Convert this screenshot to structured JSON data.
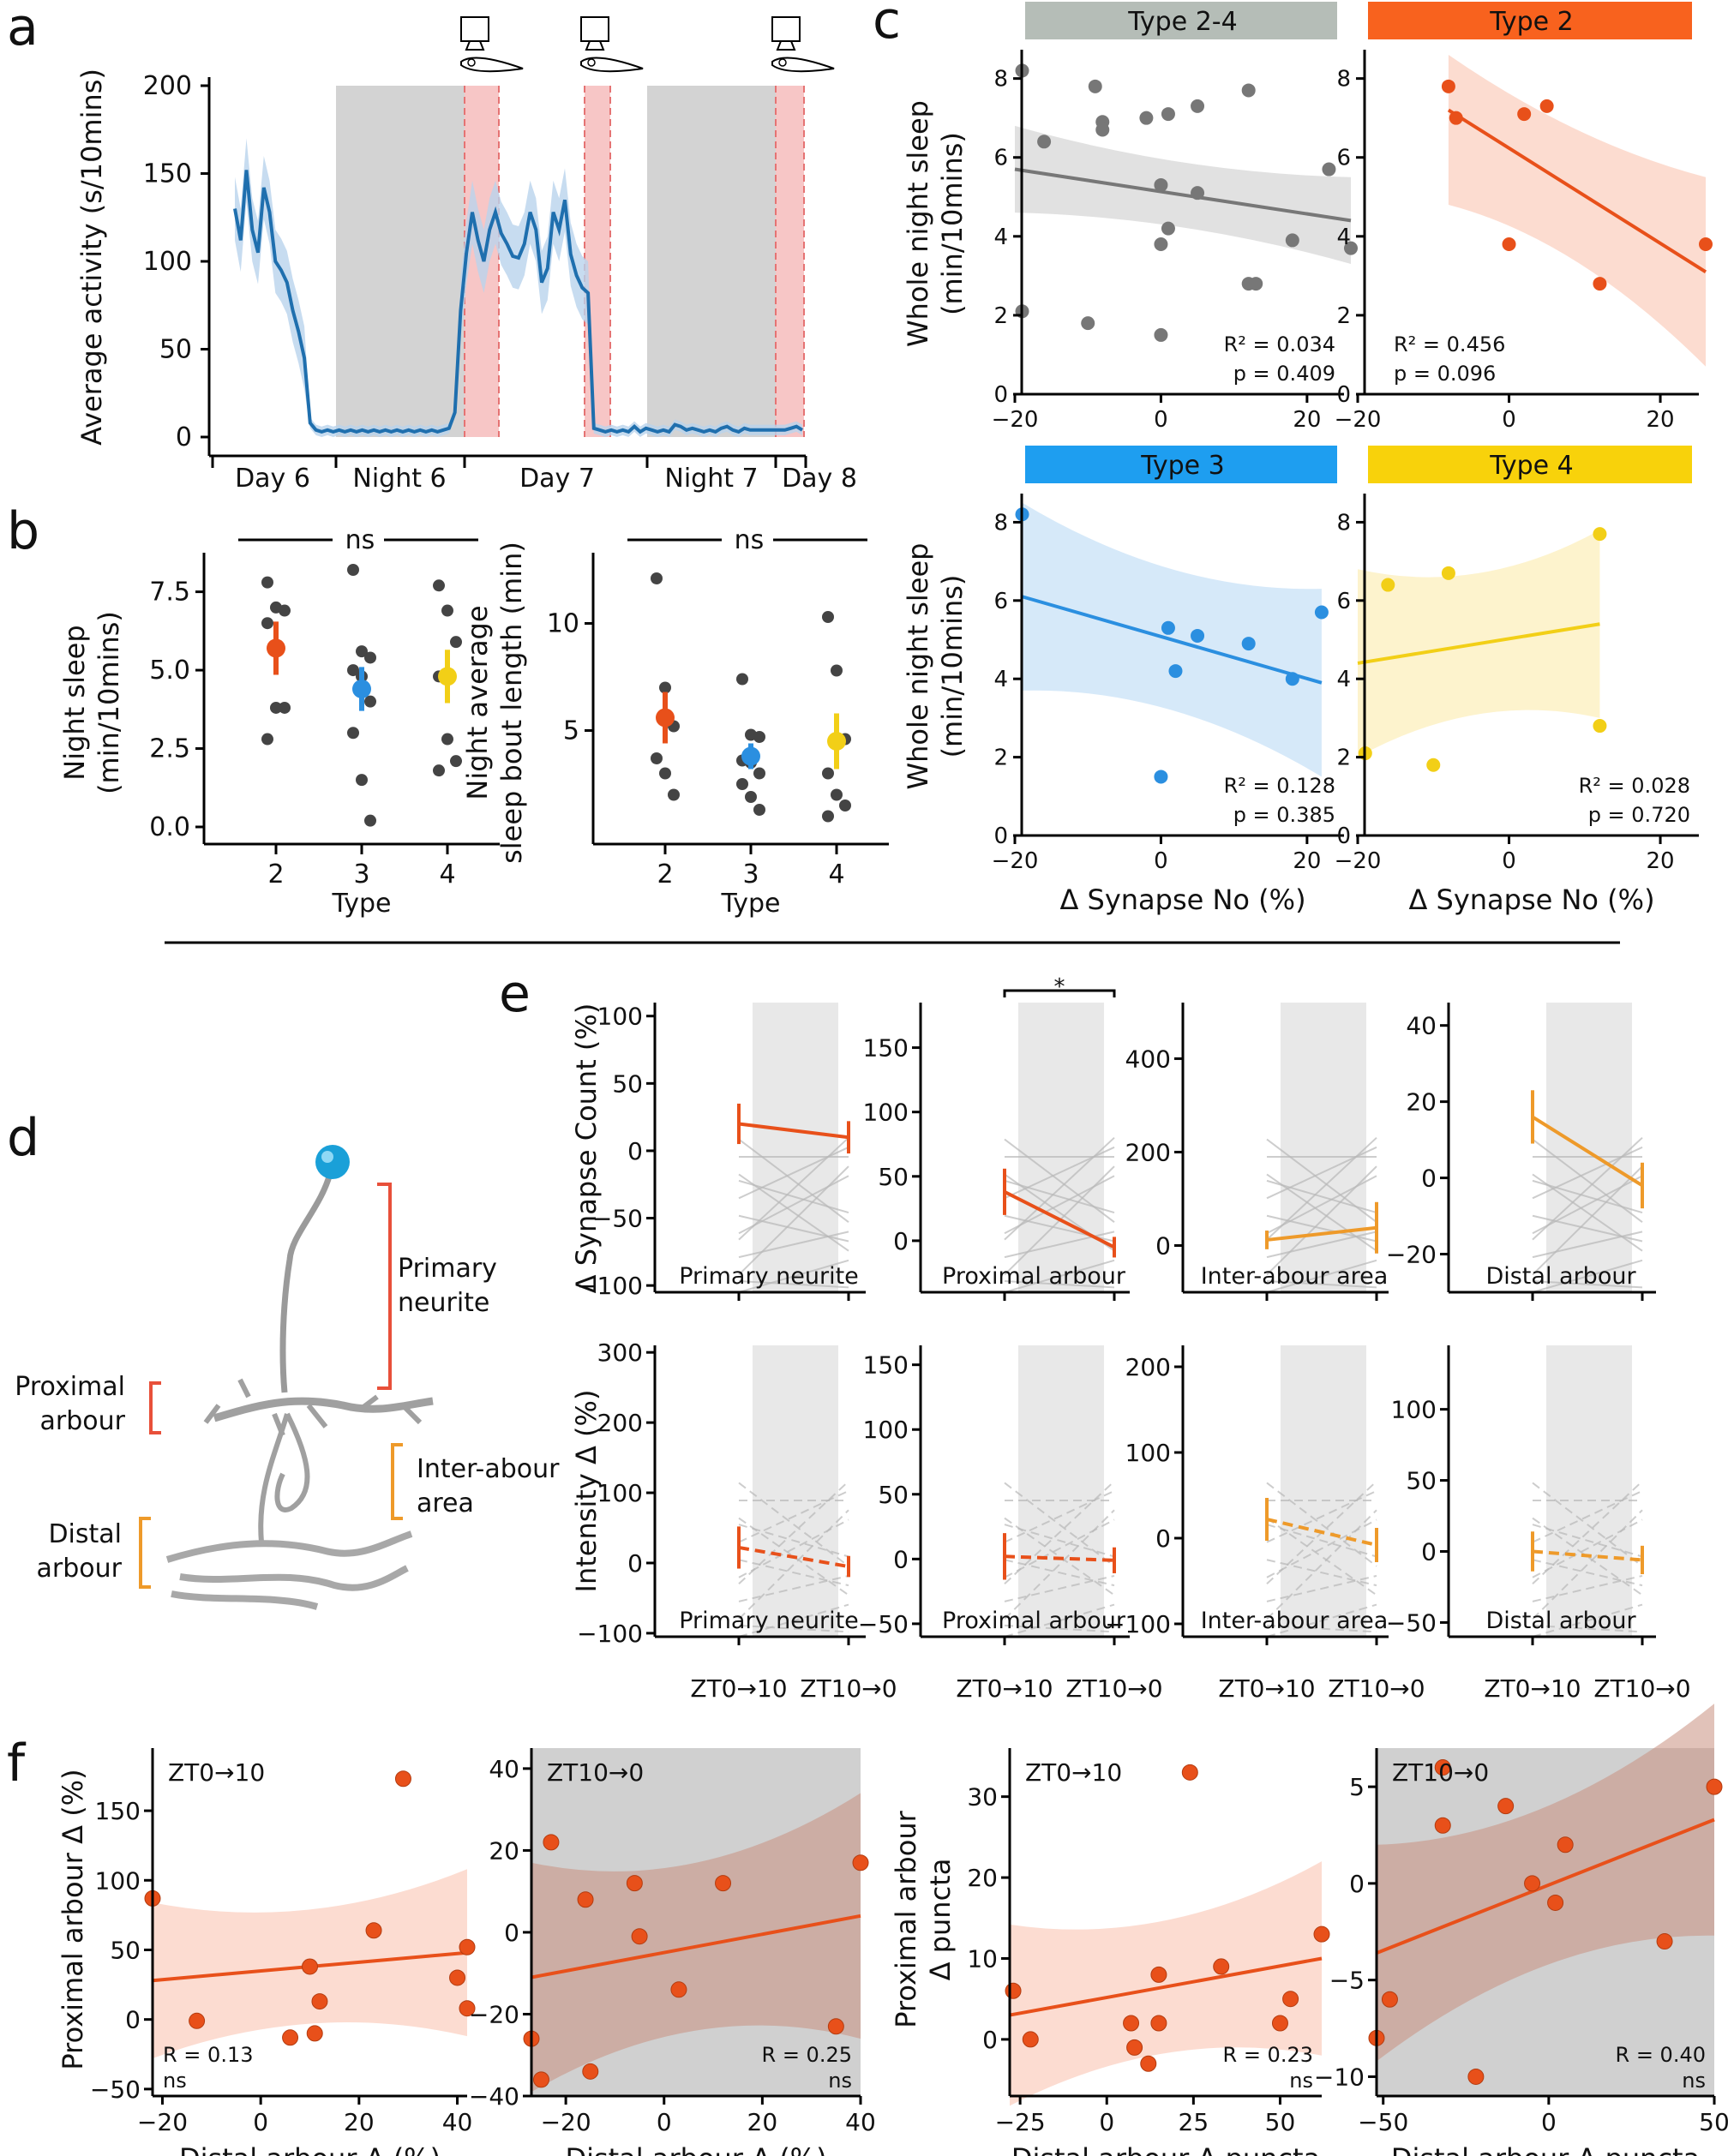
{
  "figure": {
    "panel_labels": [
      "a",
      "b",
      "c",
      "d",
      "e",
      "f"
    ]
  },
  "colors": {
    "type2": "#e8501a",
    "type3": "#2b8fe0",
    "type4": "#f2cf17",
    "type24": "#777777",
    "orange": "#ee9a2a",
    "activity": "#1f6fae",
    "night_gray": "#d3d3d3",
    "pink": "#f7c6c6"
  },
  "chart_data": [
    {
      "id": "a",
      "type": "line",
      "title": "",
      "ylabel": "Average activity (s/10mins)",
      "ylim": [
        0,
        200
      ],
      "yticks": [
        "0",
        "50",
        "100",
        "150",
        "200"
      ],
      "periods": [
        "Day 6",
        "Night 6",
        "Day 7",
        "Night 7",
        "Day 8"
      ],
      "series": [
        {
          "name": "activity",
          "x": [
            0,
            1,
            2,
            3,
            4,
            5,
            6,
            7,
            8,
            9,
            10,
            11,
            12,
            13,
            14,
            15,
            16,
            17,
            18,
            19,
            20,
            21,
            22,
            23,
            24,
            25,
            26,
            27,
            28,
            29,
            30,
            31,
            32,
            33,
            34,
            35,
            36,
            37,
            38,
            39,
            40,
            41,
            42,
            43,
            44,
            45,
            46,
            47,
            48,
            49,
            50,
            51,
            52,
            53,
            54,
            55,
            56,
            57,
            58,
            59,
            60,
            61,
            62,
            63,
            64,
            65,
            66,
            67,
            68,
            69,
            70,
            71,
            72,
            73,
            74,
            75,
            76,
            77,
            78,
            79,
            80,
            81,
            82,
            83,
            84,
            85,
            86,
            87,
            88,
            89,
            90,
            91,
            92,
            93,
            94,
            95,
            96,
            97,
            98
          ],
          "values": [
            130,
            112,
            152,
            118,
            105,
            142,
            128,
            100,
            95,
            88,
            72,
            60,
            45,
            8,
            4,
            3,
            4,
            3,
            4,
            3,
            4,
            3,
            4,
            3,
            4,
            3,
            4,
            3,
            4,
            3,
            4,
            3,
            4,
            3,
            4,
            3,
            4,
            5,
            14,
            72,
            105,
            128,
            112,
            100,
            118,
            128,
            116,
            110,
            103,
            102,
            110,
            128,
            118,
            88,
            96,
            128,
            118,
            135,
            104,
            92,
            85,
            82,
            5,
            4,
            3,
            4,
            3,
            4,
            3,
            6,
            3,
            5,
            4,
            3,
            4,
            3,
            7,
            6,
            4,
            5,
            4,
            3,
            4,
            3,
            5,
            6,
            4,
            3,
            5,
            4,
            4,
            4,
            4,
            4,
            4,
            4,
            5,
            6,
            4
          ],
          "band": 18
        }
      ]
    },
    {
      "id": "b1",
      "type": "scatter",
      "ylabel": "Night sleep (min/10mins)",
      "xlabel": "Type",
      "categories": [
        "2",
        "3",
        "4"
      ],
      "ylim": [
        0,
        8.2
      ],
      "yticks": [
        "0.0",
        "2.5",
        "5.0",
        "7.5"
      ],
      "significance": "ns",
      "points": [
        [
          7.8,
          7.0,
          6.9,
          6.5,
          3.8,
          3.8,
          2.8
        ],
        [
          8.2,
          5.6,
          5.4,
          5.0,
          4.8,
          4.0,
          3.0,
          1.5,
          0.2
        ],
        [
          7.7,
          6.9,
          5.9,
          4.8,
          2.8,
          2.1,
          1.8
        ]
      ],
      "means": [
        5.7,
        4.4,
        4.8
      ],
      "errors": [
        0.85,
        0.7,
        0.85
      ]
    },
    {
      "id": "b2",
      "type": "scatter",
      "ylabel": "Night average sleep bout length (min)",
      "xlabel": "Type",
      "categories": [
        "2",
        "3",
        "4"
      ],
      "ylim": [
        0.5,
        12.5
      ],
      "yticks": [
        "5",
        "10"
      ],
      "significance": "ns",
      "points": [
        [
          12.1,
          7.0,
          5.2,
          3.7,
          3.0,
          2.0
        ],
        [
          7.4,
          4.8,
          4.7,
          3.6,
          3.5,
          3.0,
          2.5,
          1.9,
          1.3
        ],
        [
          10.3,
          7.8,
          4.6,
          3.0,
          2.0,
          1.5,
          1.0
        ]
      ],
      "means": [
        5.6,
        3.8,
        4.5
      ],
      "errors": [
        1.2,
        0.6,
        1.3
      ]
    },
    {
      "id": "c1",
      "type": "scatter",
      "title": "Type 2-4",
      "ylabel": "Whole night sleep (min/10mins)",
      "xlabel": "",
      "xlim": [
        -20,
        26
      ],
      "ylim": [
        0,
        8.6
      ],
      "xticks": [
        "−20",
        "0",
        "20"
      ],
      "yticks": [
        "0",
        "2",
        "4",
        "6",
        "8"
      ],
      "points_x": [
        -19,
        -19,
        -16,
        -10,
        -9,
        -8,
        -8,
        -2,
        0,
        0,
        0,
        1,
        1,
        5,
        5,
        12,
        12,
        13,
        18,
        23,
        26
      ],
      "points_y": [
        8.2,
        2.1,
        6.4,
        1.8,
        7.8,
        6.9,
        6.7,
        7.0,
        5.3,
        3.8,
        1.5,
        4.2,
        7.1,
        5.1,
        7.3,
        7.7,
        2.8,
        2.8,
        3.9,
        5.7,
        3.7
      ],
      "fit": [
        5.7,
        4.4
      ],
      "r2": "R² = 0.034",
      "p": "p = 0.409"
    },
    {
      "id": "c2",
      "type": "scatter",
      "title": "Type 2",
      "ylabel": "",
      "xlabel": "",
      "xlim": [
        -20,
        26
      ],
      "ylim": [
        0,
        8.6
      ],
      "xticks": [
        "−20",
        "0",
        "20"
      ],
      "yticks": [
        "0",
        "2",
        "4",
        "6",
        "8"
      ],
      "points_x": [
        -8,
        -7,
        0,
        2,
        5,
        12,
        26
      ],
      "points_y": [
        7.8,
        7.0,
        3.8,
        7.1,
        7.3,
        2.8,
        3.8
      ],
      "fit": [
        7.2,
        3.1
      ],
      "fit_x": [
        -8,
        26
      ],
      "r2": "R² = 0.456",
      "p": "p = 0.096"
    },
    {
      "id": "c3",
      "type": "scatter",
      "title": "Type 3",
      "ylabel": "Whole night sleep (min/10mins)",
      "xlabel": "Δ Synapse No (%)",
      "xlim": [
        -20,
        26
      ],
      "ylim": [
        0,
        8.6
      ],
      "xticks": [
        "−20",
        "0",
        "20"
      ],
      "yticks": [
        "0",
        "2",
        "4",
        "6",
        "8"
      ],
      "points_x": [
        -19,
        0,
        1,
        2,
        5,
        12,
        18,
        22
      ],
      "points_y": [
        8.2,
        1.5,
        5.3,
        4.2,
        5.1,
        4.9,
        4.0,
        5.7
      ],
      "fit": [
        6.1,
        3.9
      ],
      "fit_x": [
        -19,
        22
      ],
      "r2": "R² = 0.128",
      "p": "p = 0.385"
    },
    {
      "id": "c4",
      "type": "scatter",
      "title": "Type 4",
      "ylabel": "",
      "xlabel": "Δ Synapse No (%)",
      "xlim": [
        -20,
        26
      ],
      "ylim": [
        0,
        8.6
      ],
      "xticks": [
        "−20",
        "0",
        "20"
      ],
      "yticks": [
        "0",
        "2",
        "4",
        "6",
        "8"
      ],
      "points_x": [
        -19,
        -16,
        -10,
        -8,
        12,
        12
      ],
      "points_y": [
        2.1,
        6.4,
        1.8,
        6.7,
        7.7,
        2.8
      ],
      "fit": [
        4.4,
        5.4
      ],
      "fit_x": [
        -20,
        12
      ],
      "r2": "R² = 0.028",
      "p": "p = 0.720"
    },
    {
      "id": "e",
      "type": "line",
      "xlabel_ticks": [
        "ZT0→10",
        "ZT10→0"
      ],
      "row_ylabels": [
        "Δ Synapse Count (%)",
        "Intensity Δ (%)"
      ],
      "panels": [
        {
          "label": "Primary neurite",
          "ylim": [
            -105,
            110
          ],
          "yticks": [
            "100",
            "50",
            "0",
            "−50",
            "−100"
          ],
          "ytick_vals": [
            100,
            50,
            0,
            -50,
            -100
          ],
          "mean": [
            20,
            10
          ],
          "err": [
            15,
            12
          ],
          "color": "type2",
          "dashed": false
        },
        {
          "label": "Proximal arbour",
          "ylim": [
            -40,
            185
          ],
          "yticks": [
            "150",
            "100",
            "50",
            "0"
          ],
          "ytick_vals": [
            150,
            100,
            50,
            0
          ],
          "mean": [
            38,
            -5
          ],
          "err": [
            18,
            8
          ],
          "color": "type2",
          "dashed": false,
          "sig": "*"
        },
        {
          "label": "Inter-abour area",
          "ylim": [
            -100,
            520
          ],
          "yticks": [
            "400",
            "200",
            "0"
          ],
          "ytick_vals": [
            400,
            200,
            0
          ],
          "mean": [
            12,
            38
          ],
          "err": [
            20,
            55
          ],
          "color": "orange",
          "dashed": false
        },
        {
          "label": "Distal arbour",
          "ylim": [
            -30,
            46
          ],
          "yticks": [
            "40",
            "20",
            "0",
            "−20"
          ],
          "ytick_vals": [
            40,
            20,
            0,
            -20
          ],
          "mean": [
            16,
            -2
          ],
          "err": [
            7,
            6
          ],
          "color": "orange",
          "dashed": false
        },
        {
          "label": "Primary neurite",
          "ylim": [
            -105,
            310
          ],
          "yticks": [
            "300",
            "200",
            "100",
            "0",
            "−100"
          ],
          "ytick_vals": [
            300,
            200,
            100,
            0,
            -100
          ],
          "mean": [
            22,
            -5
          ],
          "err": [
            30,
            15
          ],
          "color": "type2",
          "dashed": true
        },
        {
          "label": "Proximal arbour",
          "ylim": [
            -60,
            165
          ],
          "yticks": [
            "150",
            "100",
            "50",
            "0",
            "−50"
          ],
          "ytick_vals": [
            150,
            100,
            50,
            0,
            -50
          ],
          "mean": [
            2,
            -1
          ],
          "err": [
            18,
            10
          ],
          "color": "type2",
          "dashed": true
        },
        {
          "label": "Inter-abour area",
          "ylim": [
            -115,
            225
          ],
          "yticks": [
            "200",
            "100",
            "0",
            "−100"
          ],
          "ytick_vals": [
            200,
            100,
            0,
            -100
          ],
          "mean": [
            22,
            -8
          ],
          "err": [
            25,
            20
          ],
          "color": "orange",
          "dashed": true
        },
        {
          "label": "Distal arbour",
          "ylim": [
            -60,
            145
          ],
          "yticks": [
            "100",
            "50",
            "0",
            "−50"
          ],
          "ytick_vals": [
            100,
            50,
            0,
            -50
          ],
          "mean": [
            0,
            -6
          ],
          "err": [
            14,
            10
          ],
          "color": "orange",
          "dashed": true
        }
      ]
    },
    {
      "id": "f",
      "type": "scatter",
      "panels": [
        {
          "title": "ZT0→10",
          "ylabel": "Proximal arbour Δ (%)",
          "xlabel": "Distal arbour Δ (%)",
          "xlim": [
            -22,
            42
          ],
          "ylim": [
            -55,
            195
          ],
          "xticks": [
            "−20",
            "0",
            "20",
            "40"
          ],
          "xtick_vals": [
            -20,
            0,
            20,
            40
          ],
          "yticks": [
            "150",
            "100",
            "50",
            "0",
            "−50"
          ],
          "ytick_vals": [
            150,
            100,
            50,
            0,
            -50
          ],
          "points_x": [
            -22,
            -13,
            6,
            10,
            11,
            12,
            23,
            29,
            40,
            42,
            42
          ],
          "points_y": [
            87,
            -1,
            -13,
            38,
            -10,
            13,
            64,
            173,
            30,
            52,
            8
          ],
          "fit": [
            28,
            48
          ],
          "band": 40,
          "gray": false,
          "r": "R = 0.13",
          "sig": "ns"
        },
        {
          "title": "ZT10→0",
          "ylabel": "",
          "xlabel": "Distal arbour Δ (%)",
          "xlim": [
            -27,
            40
          ],
          "ylim": [
            -40,
            45
          ],
          "xticks": [
            "−20",
            "0",
            "20",
            "40"
          ],
          "xtick_vals": [
            -20,
            0,
            20,
            40
          ],
          "yticks": [
            "40",
            "20",
            "0",
            "−20",
            "−40"
          ],
          "ytick_vals": [
            40,
            20,
            0,
            -20,
            -40
          ],
          "points_x": [
            -27,
            -25,
            -23,
            -16,
            -15,
            -6,
            -5,
            3,
            12,
            35,
            40
          ],
          "points_y": [
            -26,
            -36,
            22,
            8,
            -34,
            12,
            -1,
            -14,
            12,
            -23,
            17
          ],
          "fit": [
            -11,
            4
          ],
          "band": 20,
          "gray": true,
          "r": "R = 0.25",
          "sig": "ns"
        },
        {
          "title": "ZT0→10",
          "ylabel": "Proximal arbour Δ puncta",
          "xlabel": "Distal arbour Δ puncta",
          "xlim": [
            -28,
            62
          ],
          "ylim": [
            -7,
            36
          ],
          "xticks": [
            "−25",
            "0",
            "25",
            "50"
          ],
          "xtick_vals": [
            -25,
            0,
            25,
            50
          ],
          "yticks": [
            "30",
            "20",
            "10",
            "0"
          ],
          "ytick_vals": [
            30,
            20,
            10,
            0
          ],
          "points_x": [
            -27,
            -22,
            7,
            8,
            12,
            15,
            15,
            24,
            33,
            50,
            53,
            62
          ],
          "points_y": [
            6,
            0,
            2,
            -1,
            -3,
            8,
            2,
            33,
            9,
            2,
            5,
            13
          ],
          "fit": [
            3,
            10
          ],
          "band": 8,
          "gray": false,
          "r": "R = 0.23",
          "sig": "ns"
        },
        {
          "title": "ZT10→0",
          "ylabel": "",
          "xlabel": "Distal arbour Δ puncta",
          "xlim": [
            -52,
            50
          ],
          "ylim": [
            -11,
            7
          ],
          "xticks": [
            "−50",
            "0",
            "50"
          ],
          "xtick_vals": [
            -50,
            0,
            50
          ],
          "yticks": [
            "5",
            "0",
            "−5",
            "−10"
          ],
          "ytick_vals": [
            5,
            0,
            -5,
            -10
          ],
          "points_x": [
            -52,
            -48,
            -32,
            -32,
            -22,
            -13,
            -5,
            5,
            2,
            35,
            50
          ],
          "points_y": [
            -8,
            -6,
            3,
            6,
            -10,
            4,
            0,
            2,
            -1,
            -3,
            5
          ],
          "fit": [
            -3.6,
            3.3
          ],
          "band": 4,
          "gray": true,
          "r": "R = 0.40",
          "sig": "ns"
        }
      ]
    }
  ],
  "neuron": {
    "labels": [
      "Primary neurite",
      "Proximal arbour",
      "Inter-abour area",
      "Distal arbour"
    ]
  }
}
